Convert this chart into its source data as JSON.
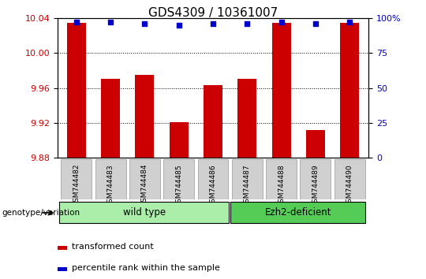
{
  "title": "GDS4309 / 10361007",
  "samples": [
    "GSM744482",
    "GSM744483",
    "GSM744484",
    "GSM744485",
    "GSM744486",
    "GSM744487",
    "GSM744488",
    "GSM744489",
    "GSM744490"
  ],
  "transformed_counts": [
    10.035,
    9.97,
    9.975,
    9.921,
    9.963,
    9.97,
    10.035,
    9.912,
    10.035
  ],
  "percentile_ranks": [
    97,
    97,
    96,
    95,
    96,
    96,
    97,
    96,
    97
  ],
  "ylim_left": [
    9.88,
    10.04
  ],
  "ylim_right": [
    0,
    100
  ],
  "yticks_left": [
    9.88,
    9.92,
    9.96,
    10.0,
    10.04
  ],
  "yticks_right": [
    0,
    25,
    50,
    75,
    100
  ],
  "bar_color": "#cc0000",
  "dot_color": "#0000cc",
  "group_spans": [
    {
      "xstart": 0,
      "xend": 5,
      "label": "wild type",
      "color": "#aaeeaa"
    },
    {
      "xstart": 5,
      "xend": 9,
      "label": "Ezh2-deficient",
      "color": "#55cc55"
    }
  ],
  "genotype_label": "genotype/variation",
  "legend_items": [
    {
      "color": "#cc0000",
      "label": "transformed count"
    },
    {
      "color": "#0000cc",
      "label": "percentile rank within the sample"
    }
  ],
  "title_fontsize": 11,
  "tick_label_color_left": "#cc0000",
  "tick_label_color_right": "#0000cc",
  "xtick_bg_color": "#d0d0d0",
  "xtick_border_color": "#999999"
}
